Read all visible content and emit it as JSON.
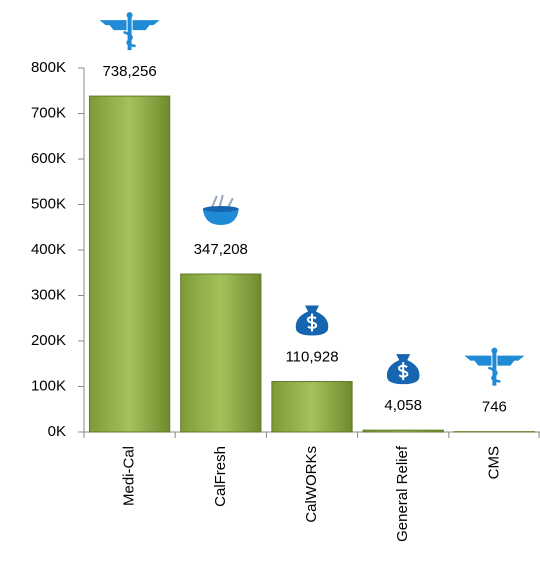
{
  "chart_data": {
    "type": "bar",
    "categories": [
      "Medi-Cal",
      "CalFresh",
      "CalWORKs",
      "General Relief",
      "CMS"
    ],
    "values": [
      738256,
      347208,
      110928,
      4058,
      746
    ],
    "value_labels": [
      "738,256",
      "347,208",
      "110,928",
      "4,058",
      "746"
    ],
    "color": "#9bbb59",
    "ylim": [
      0,
      800000
    ],
    "yticks": [
      {
        "value": 0,
        "label": "0K"
      },
      {
        "value": 100000,
        "label": "100K"
      },
      {
        "value": 200000,
        "label": "200K"
      },
      {
        "value": 300000,
        "label": "300K"
      },
      {
        "value": 400000,
        "label": "400K"
      },
      {
        "value": 500000,
        "label": "500K"
      },
      {
        "value": 600000,
        "label": "600K"
      },
      {
        "value": 700000,
        "label": "700K"
      },
      {
        "value": 800000,
        "label": "800K"
      }
    ],
    "grid": false
  }
}
